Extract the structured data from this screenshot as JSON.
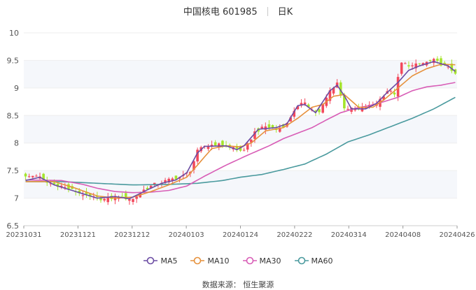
{
  "header": {
    "stock_name_code": "中国核电 601985",
    "period": "日K"
  },
  "source": "数据来源： 恒生聚源",
  "colors": {
    "up": "#f2495c",
    "down": "#a5e52b",
    "grid": "#eeeeee",
    "band": "#f5f7fb",
    "MA5": "#6b4ca3",
    "MA10": "#e6913c",
    "MA30": "#d85db6",
    "MA60": "#4a9a9e"
  },
  "chart_data": {
    "type": "candlestick",
    "x_tick_labels": [
      "20231031",
      "20231121",
      "20231212",
      "20240103",
      "20240124",
      "20240222",
      "20240314",
      "20240408",
      "20240426"
    ],
    "y_ticks": [
      6.5,
      7,
      7.5,
      8,
      8.5,
      9,
      9.5,
      10
    ],
    "ylim": [
      6.5,
      10
    ],
    "num_days": 121,
    "legend": [
      {
        "name": "MA5",
        "color": "#6b4ca3"
      },
      {
        "name": "MA10",
        "color": "#e6913c"
      },
      {
        "name": "MA30",
        "color": "#d85db6"
      },
      {
        "name": "MA60",
        "color": "#4a9a9e"
      }
    ],
    "close_anchors": [
      [
        0,
        7.38
      ],
      [
        3,
        7.42
      ],
      [
        6,
        7.28
      ],
      [
        10,
        7.22
      ],
      [
        14,
        7.12
      ],
      [
        18,
        7.02
      ],
      [
        22,
        6.98
      ],
      [
        26,
        7.02
      ],
      [
        30,
        6.98
      ],
      [
        33,
        7.15
      ],
      [
        36,
        7.25
      ],
      [
        40,
        7.33
      ],
      [
        44,
        7.4
      ],
      [
        46,
        7.5
      ],
      [
        48,
        7.85
      ],
      [
        50,
        7.95
      ],
      [
        53,
        7.98
      ],
      [
        58,
        7.92
      ],
      [
        61,
        7.85
      ],
      [
        64,
        8.2
      ],
      [
        67,
        8.3
      ],
      [
        70,
        8.25
      ],
      [
        73,
        8.35
      ],
      [
        75,
        8.6
      ],
      [
        78,
        8.75
      ],
      [
        80,
        8.6
      ],
      [
        82,
        8.55
      ],
      [
        85,
        8.95
      ],
      [
        87,
        9.1
      ],
      [
        89,
        8.65
      ],
      [
        92,
        8.6
      ],
      [
        95,
        8.65
      ],
      [
        98,
        8.72
      ],
      [
        101,
        8.95
      ],
      [
        103,
        8.9
      ],
      [
        105,
        9.45
      ],
      [
        108,
        9.4
      ],
      [
        111,
        9.45
      ],
      [
        114,
        9.5
      ],
      [
        117,
        9.4
      ],
      [
        120,
        9.28
      ]
    ],
    "ma5_anchors": [
      [
        0,
        7.32
      ],
      [
        4,
        7.38
      ],
      [
        8,
        7.24
      ],
      [
        14,
        7.12
      ],
      [
        20,
        7.0
      ],
      [
        25,
        7.03
      ],
      [
        29,
        6.99
      ],
      [
        34,
        7.15
      ],
      [
        38,
        7.27
      ],
      [
        42,
        7.33
      ],
      [
        45,
        7.46
      ],
      [
        48,
        7.82
      ],
      [
        50,
        7.94
      ],
      [
        56,
        7.95
      ],
      [
        59,
        7.88
      ],
      [
        61,
        7.95
      ],
      [
        65,
        8.25
      ],
      [
        70,
        8.28
      ],
      [
        73,
        8.35
      ],
      [
        76,
        8.68
      ],
      [
        78,
        8.7
      ],
      [
        81,
        8.55
      ],
      [
        85,
        8.95
      ],
      [
        87,
        9.05
      ],
      [
        89,
        8.86
      ],
      [
        91,
        8.62
      ],
      [
        95,
        8.62
      ],
      [
        98,
        8.72
      ],
      [
        101,
        8.92
      ],
      [
        104,
        9.1
      ],
      [
        107,
        9.32
      ],
      [
        110,
        9.4
      ],
      [
        114,
        9.48
      ],
      [
        118,
        9.4
      ],
      [
        120,
        9.3
      ]
    ],
    "ma10_anchors": [
      [
        0,
        7.3
      ],
      [
        8,
        7.3
      ],
      [
        14,
        7.18
      ],
      [
        20,
        7.04
      ],
      [
        25,
        7.0
      ],
      [
        30,
        7.02
      ],
      [
        35,
        7.12
      ],
      [
        40,
        7.24
      ],
      [
        45,
        7.38
      ],
      [
        48,
        7.6
      ],
      [
        52,
        7.9
      ],
      [
        56,
        7.95
      ],
      [
        60,
        7.93
      ],
      [
        63,
        8.0
      ],
      [
        67,
        8.22
      ],
      [
        72,
        8.28
      ],
      [
        76,
        8.45
      ],
      [
        80,
        8.65
      ],
      [
        83,
        8.7
      ],
      [
        86,
        8.85
      ],
      [
        89,
        8.88
      ],
      [
        93,
        8.65
      ],
      [
        97,
        8.65
      ],
      [
        100,
        8.78
      ],
      [
        104,
        9.0
      ],
      [
        108,
        9.22
      ],
      [
        112,
        9.35
      ],
      [
        116,
        9.43
      ],
      [
        120,
        9.42
      ]
    ],
    "ma30_anchors": [
      [
        0,
        7.33
      ],
      [
        10,
        7.32
      ],
      [
        16,
        7.25
      ],
      [
        20,
        7.18
      ],
      [
        25,
        7.12
      ],
      [
        30,
        7.1
      ],
      [
        35,
        7.11
      ],
      [
        40,
        7.14
      ],
      [
        45,
        7.22
      ],
      [
        50,
        7.4
      ],
      [
        56,
        7.6
      ],
      [
        62,
        7.78
      ],
      [
        68,
        7.95
      ],
      [
        72,
        8.08
      ],
      [
        76,
        8.18
      ],
      [
        80,
        8.28
      ],
      [
        84,
        8.42
      ],
      [
        88,
        8.55
      ],
      [
        92,
        8.63
      ],
      [
        96,
        8.68
      ],
      [
        100,
        8.75
      ],
      [
        104,
        8.83
      ],
      [
        108,
        8.95
      ],
      [
        112,
        9.02
      ],
      [
        116,
        9.05
      ],
      [
        120,
        9.1
      ]
    ],
    "ma60_anchors": [
      [
        0,
        7.3
      ],
      [
        10,
        7.3
      ],
      [
        20,
        7.27
      ],
      [
        30,
        7.24
      ],
      [
        40,
        7.25
      ],
      [
        48,
        7.27
      ],
      [
        55,
        7.32
      ],
      [
        60,
        7.38
      ],
      [
        66,
        7.43
      ],
      [
        72,
        7.52
      ],
      [
        78,
        7.62
      ],
      [
        84,
        7.8
      ],
      [
        90,
        8.02
      ],
      [
        96,
        8.15
      ],
      [
        102,
        8.3
      ],
      [
        108,
        8.45
      ],
      [
        114,
        8.62
      ],
      [
        120,
        8.83
      ]
    ]
  }
}
